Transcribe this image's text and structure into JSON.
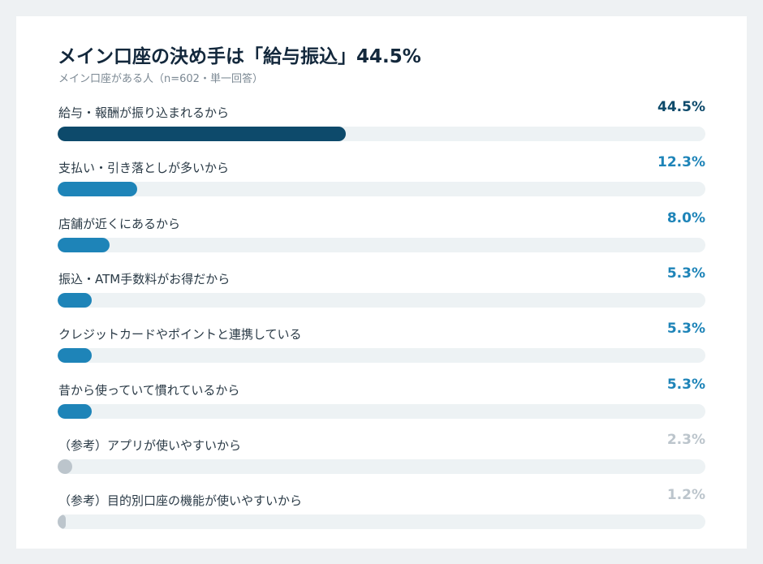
{
  "chart_data": {
    "type": "bar",
    "title": "メイン口座の決め手は「給与振込」44.5%",
    "subtitle": "メイン口座がある人（n=602・単一回答）",
    "xlim": [
      0,
      100
    ],
    "bars": [
      {
        "label": "給与・報酬が振り込まれるから",
        "value": 44.5,
        "value_label": "44.5%",
        "color": "#0d4a6b",
        "text_color": "#0d4a6b"
      },
      {
        "label": "支払い・引き落としが多いから",
        "value": 12.3,
        "value_label": "12.3%",
        "color": "#1e84b8",
        "text_color": "#1e84b8"
      },
      {
        "label": "店舗が近くにあるから",
        "value": 8.0,
        "value_label": "8.0%",
        "color": "#1e84b8",
        "text_color": "#1e84b8"
      },
      {
        "label": "振込・ATM手数料がお得だから",
        "value": 5.3,
        "value_label": "5.3%",
        "color": "#1e84b8",
        "text_color": "#1e84b8"
      },
      {
        "label": "クレジットカードやポイントと連携している",
        "value": 5.3,
        "value_label": "5.3%",
        "color": "#1e84b8",
        "text_color": "#1e84b8"
      },
      {
        "label": "昔から使っていて慣れているから",
        "value": 5.3,
        "value_label": "5.3%",
        "color": "#1e84b8",
        "text_color": "#1e84b8"
      },
      {
        "label": "（参考）アプリが使いやすいから",
        "value": 2.3,
        "value_label": "2.3%",
        "color": "#bcc5cc",
        "text_color": "#bcc5cc"
      },
      {
        "label": "（参考）目的別口座の機能が使いやすいから",
        "value": 1.2,
        "value_label": "1.2%",
        "color": "#bcc5cc",
        "text_color": "#bcc5cc"
      }
    ]
  }
}
